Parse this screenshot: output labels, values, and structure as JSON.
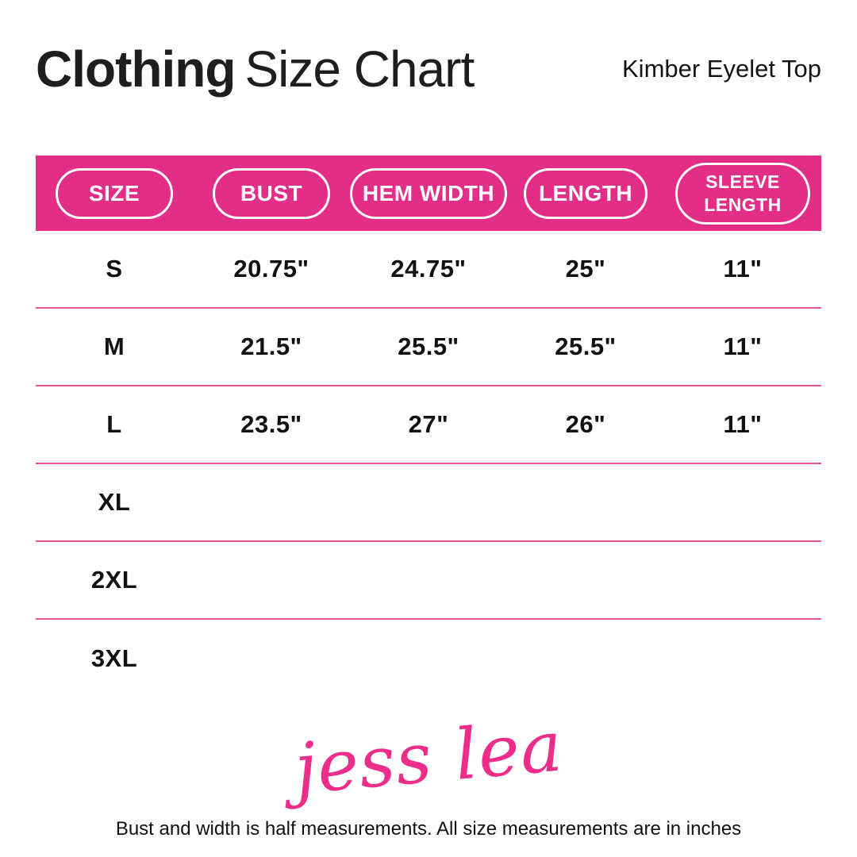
{
  "header": {
    "title_bold": "Clothing",
    "title_light": "Size Chart",
    "product_name": "Kimber Eyelet Top"
  },
  "chart_data": {
    "type": "table",
    "title": "Clothing Size Chart",
    "subject": "Kimber Eyelet Top",
    "columns": [
      "SIZE",
      "BUST",
      "HEM WIDTH",
      "LENGTH",
      "SLEEVE LENGTH"
    ],
    "rows": [
      [
        "S",
        "20.75\"",
        "24.75\"",
        "25\"",
        "11\""
      ],
      [
        "M",
        "21.5\"",
        "25.5\"",
        "25.5\"",
        "11\""
      ],
      [
        "L",
        "23.5\"",
        "27\"",
        "26\"",
        "11\""
      ],
      [
        "XL",
        "",
        "",
        "",
        ""
      ],
      [
        "2XL",
        "",
        "",
        "",
        ""
      ],
      [
        "3XL",
        "",
        "",
        "",
        ""
      ]
    ]
  },
  "footer": {
    "brand": "jess lea",
    "note": "Bust and width is half measurements. All size measurements are in inches"
  },
  "colors": {
    "header_band_pink": "#e22e87",
    "row_divider_pink": "#e2539b",
    "logo_pink": "#ec2e8a",
    "text_dark": "#1e1e1e"
  }
}
